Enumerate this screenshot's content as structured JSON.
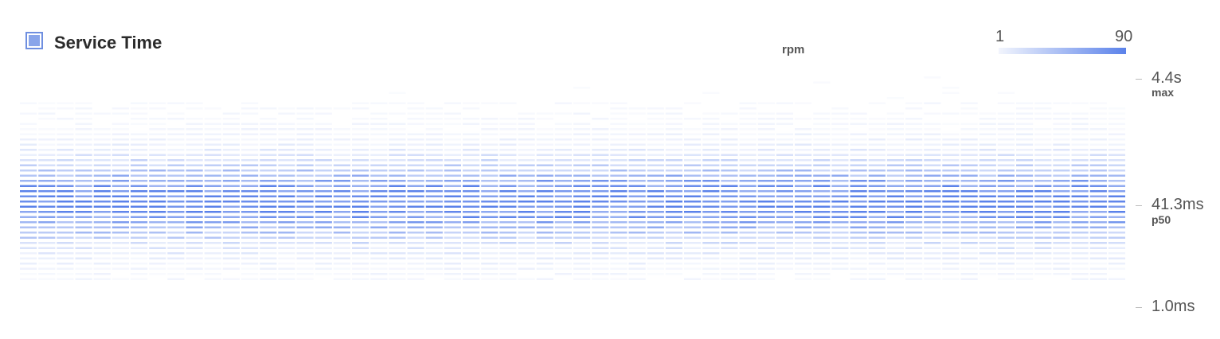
{
  "panel": {
    "title": "Service Time",
    "legend_color": "#89a5ea",
    "legend_border": "#6f8fe0"
  },
  "color_scale": {
    "min_label": "1",
    "max_label": "90",
    "unit": "rpm",
    "min_color": "#f2f5fd",
    "max_color": "#5b82ea"
  },
  "y_axis": {
    "ticks": [
      {
        "value": "4.4s",
        "sub": "max"
      },
      {
        "value": "41.3ms",
        "sub": "p50"
      },
      {
        "value": "1.0ms",
        "sub": ""
      }
    ]
  },
  "chart_data": {
    "type": "heatmap",
    "title": "Service Time",
    "unit": "rpm",
    "color_range": [
      1,
      90
    ],
    "y_scale": "log",
    "y_ticks": [
      "1.0ms",
      "41.3ms",
      "4.4s"
    ],
    "y_markers": {
      "max": "4.4s",
      "p50": "41.3ms"
    },
    "columns": 60,
    "buckets_per_column": 40,
    "density_profile": "bell-shaped around p50 (41.3ms), sparse toward max (4.4s)"
  }
}
